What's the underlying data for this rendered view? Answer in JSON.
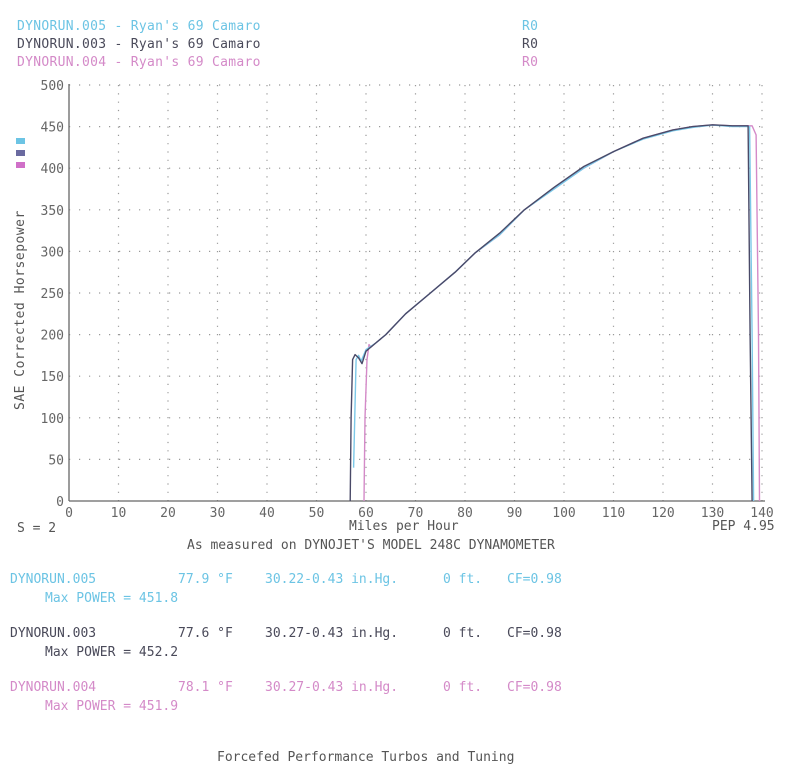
{
  "header": {
    "runs": [
      {
        "label": "DYNORUN.005 - Ryan's 69 Camaro",
        "code": "R0",
        "color": "#6cc4e4"
      },
      {
        "label": "DYNORUN.003 - Ryan's 69 Camaro",
        "code": "R0",
        "color": "#4a4a5a"
      },
      {
        "label": "DYNORUN.004 - Ryan's 69 Camaro",
        "code": "R0",
        "color": "#d48ac8"
      }
    ]
  },
  "footer_left": "S = 2",
  "footer_right": "PEP 4.95",
  "subtitle": "As measured on DYNOJET'S MODEL 248C DYNAMOMETER",
  "runs_info": [
    {
      "name": "DYNORUN.005",
      "temp": "77.9 °F",
      "baro": "30.22-0.43 in.Hg.",
      "alt": "0 ft.",
      "cf": "CF=0.98",
      "max_power": "Max POWER = 451.8"
    },
    {
      "name": "DYNORUN.003",
      "temp": "77.6 °F",
      "baro": "30.27-0.43 in.Hg.",
      "alt": "0 ft.",
      "cf": "CF=0.98",
      "max_power": "Max POWER = 452.2"
    },
    {
      "name": "DYNORUN.004",
      "temp": "78.1 °F",
      "baro": "30.27-0.43 in.Hg.",
      "alt": "0 ft.",
      "cf": "CF=0.98",
      "max_power": "Max POWER = 451.9"
    }
  ],
  "company": "Forcefed Performance Turbos and Tuning",
  "chart_data": {
    "type": "line",
    "title": "",
    "xlabel": "Miles per Hour",
    "ylabel": "SAE Corrected Horsepower",
    "xlim": [
      0,
      140
    ],
    "ylim": [
      0,
      500
    ],
    "xticks": [
      0,
      10,
      20,
      30,
      40,
      50,
      60,
      70,
      80,
      90,
      100,
      110,
      120,
      130,
      140
    ],
    "yticks": [
      0,
      50,
      100,
      150,
      200,
      250,
      300,
      350,
      400,
      450,
      500
    ],
    "grid": "dotted",
    "legend": [
      "DYNORUN.005",
      "DYNORUN.003",
      "DYNORUN.004"
    ],
    "legend_position": "left swatches",
    "series": [
      {
        "name": "DYNORUN.005",
        "color": "#7cc8e8",
        "x": [
          57.5,
          58,
          58.5,
          59,
          60,
          62,
          64,
          68,
          73,
          78,
          82,
          87,
          92,
          98,
          104,
          110,
          116,
          122,
          126,
          130,
          134,
          137.5,
          138,
          138.3
        ],
        "y": [
          40,
          170,
          175,
          168,
          182,
          190,
          200,
          225,
          250,
          275,
          298,
          320,
          350,
          375,
          400,
          420,
          435,
          445,
          449,
          451.8,
          450,
          450,
          200,
          0
        ]
      },
      {
        "name": "DYNORUN.003",
        "color": "#4a4a68",
        "x": [
          56.8,
          57,
          57.3,
          57.8,
          58.5,
          59.2,
          60,
          62,
          64,
          68,
          73,
          78,
          82,
          87,
          92,
          98,
          104,
          110,
          116,
          122,
          126,
          130,
          134,
          137.2,
          137.6,
          138
        ],
        "y": [
          0,
          100,
          170,
          176,
          172,
          165,
          180,
          190,
          200,
          225,
          250,
          275,
          298,
          322,
          350,
          377,
          402,
          420,
          436,
          446,
          450,
          452.2,
          451,
          451,
          200,
          0
        ]
      },
      {
        "name": "DYNORUN.004",
        "color": "#d48ac8",
        "x": [
          59.6,
          59.8,
          60.2,
          60.6,
          61,
          62,
          64,
          68,
          73,
          78,
          82,
          87,
          92,
          98,
          104,
          110,
          116,
          122,
          126,
          130,
          134,
          138,
          138.8,
          139.3,
          139.5
        ],
        "y": [
          0,
          100,
          170,
          188,
          185,
          190,
          200,
          225,
          250,
          275,
          298,
          320,
          350,
          376,
          400,
          420,
          436,
          446,
          450,
          451.9,
          451,
          451,
          440,
          200,
          0
        ]
      }
    ]
  }
}
